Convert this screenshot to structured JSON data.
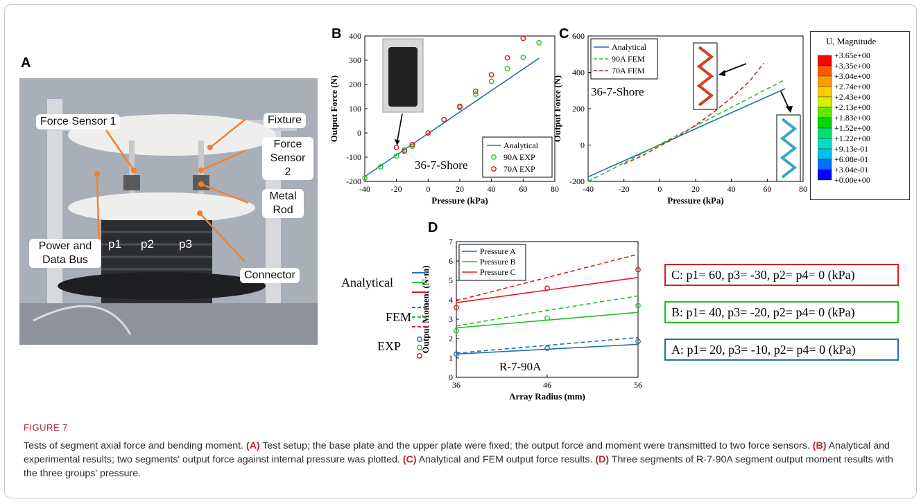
{
  "figure_label": "FIGURE 7",
  "caption": {
    "intro": "Tests of segment axial force and bending moment. ",
    "a_tag": "(A)",
    "a_text": " Test setup; the base plate and the upper plate were fixed; the output force and moment were transmitted to two force sensors. ",
    "b_tag": "(B)",
    "b_text": " Analytical and experimental results; two segments' output force against internal pressure was plotted. ",
    "c_tag": "(C)",
    "c_text": " Analytical and FEM output force results. ",
    "d_tag": "(D)",
    "d_text": " Three segments of R-7-90A segment output moment results with the three groups' pressure."
  },
  "panels": {
    "a": "A",
    "b": "B",
    "c": "C",
    "d": "D"
  },
  "panel_a": {
    "callouts": {
      "force_sensor_1": "Force Sensor 1",
      "fixture": "Fixture",
      "force_sensor_2": "Force Sensor 2",
      "metal_rod": "Metal Rod",
      "power_data_bus": "Power and Data Bus",
      "connector": "Connector"
    },
    "ports": [
      "p1",
      "p2",
      "p3"
    ]
  },
  "panel_d_legend": {
    "analytical": "Analytical",
    "fem": "FEM",
    "exp": "EXP",
    "colors": {
      "a": "#1f6fb5",
      "b": "#1ec41e",
      "c": "#e01b1b"
    }
  },
  "cases": [
    {
      "id": "c",
      "text": "C: p1= 60, p3= -30, p2= p4= 0 (kPa)",
      "color": "#e01b1b"
    },
    {
      "id": "b",
      "text": "B: p1= 40, p3= -20, p2= p4= 0 (kPa)",
      "color": "#1ec41e"
    },
    {
      "id": "a",
      "text": "A: p1= 20, p3= -10, p2= p4= 0 (kPa)",
      "color": "#1f6fb5"
    }
  ],
  "colorbar": {
    "title": "U, Magnitude",
    "labels": [
      "+3.65e+00",
      "+3.35e+00",
      "+3.04e+00",
      "+2.74e+00",
      "+2.43e+00",
      "+2.13e+00",
      "+1.83e+00",
      "+1.52e+00",
      "+1.22e+00",
      "+9.13e-01",
      "+6.08e-01",
      "+3.04e-01",
      "+0.00e+00"
    ],
    "colors": [
      "#ff0000",
      "#ff5a00",
      "#ff9b00",
      "#ffcc00",
      "#d8f000",
      "#60e800",
      "#00d800",
      "#00e070",
      "#00e0c0",
      "#00c0f0",
      "#0070ff",
      "#0000ff"
    ]
  },
  "chart_data": [
    {
      "id": "B",
      "type": "scatter",
      "xlabel": "Pressure (kPa)",
      "ylabel": "Output Force (N)",
      "xlim": [
        -40,
        80
      ],
      "ylim": [
        -200,
        400
      ],
      "xticks": [
        -40,
        -20,
        0,
        20,
        40,
        60,
        80
      ],
      "yticks": [
        -200,
        -100,
        0,
        100,
        200,
        300,
        400
      ],
      "annotation": "36-7-Shore",
      "legend_position": "bottom-right",
      "series": [
        {
          "name": "Analytical",
          "kind": "line",
          "color": "#1f6fb5",
          "x": [
            -40,
            70
          ],
          "y": [
            -180,
            308
          ]
        },
        {
          "name": "90A EXP",
          "kind": "markers",
          "color": "#1ec41e",
          "x": [
            -40,
            -30,
            -20,
            -15,
            -10,
            0,
            10,
            20,
            30,
            40,
            50,
            60,
            70
          ],
          "y": [
            -187,
            -140,
            -95,
            -70,
            -55,
            0,
            55,
            105,
            160,
            213,
            265,
            312,
            372
          ]
        },
        {
          "name": "70A EXP",
          "kind": "markers",
          "color": "#e01b1b",
          "x": [
            -20,
            -15,
            -10,
            0,
            10,
            20,
            30,
            40,
            50,
            60
          ],
          "y": [
            -60,
            -75,
            -48,
            0,
            55,
            110,
            172,
            240,
            310,
            390
          ]
        }
      ]
    },
    {
      "id": "C",
      "type": "line",
      "xlabel": "Pressure (kPa)",
      "ylabel": "Output Force (N)",
      "xlim": [
        -40,
        80
      ],
      "ylim": [
        -200,
        600
      ],
      "xticks": [
        -40,
        -20,
        0,
        20,
        40,
        60,
        80
      ],
      "yticks": [
        -200,
        0,
        200,
        400,
        600
      ],
      "annotation": "36-7-Shore",
      "legend_position": "top-left",
      "series": [
        {
          "name": "Analytical",
          "style": "solid",
          "color": "#1f6fb5",
          "x": [
            -40,
            70
          ],
          "y": [
            -175,
            310
          ]
        },
        {
          "name": "90A FEM",
          "style": "dashed",
          "color": "#1ec41e",
          "x": [
            -40,
            70
          ],
          "y": [
            -200,
            360
          ]
        },
        {
          "name": "70A FEM",
          "style": "dashed",
          "color": "#e01b1b",
          "x": [
            -20,
            -10,
            0,
            10,
            20,
            30,
            40,
            50,
            58
          ],
          "y": [
            -105,
            -60,
            -5,
            45,
            110,
            180,
            260,
            350,
            450
          ]
        }
      ]
    },
    {
      "id": "D",
      "type": "line",
      "xlabel": "Array Radius (mm)",
      "ylabel": "Output Moment (N·m)",
      "xlim": [
        36,
        56
      ],
      "ylim": [
        0,
        7
      ],
      "categories": [
        36,
        46,
        56
      ],
      "yticks": [
        0,
        1,
        2,
        3,
        4,
        5,
        6,
        7
      ],
      "annotation": "R-7-90A",
      "legend_position": "top-left",
      "series": [
        {
          "name": "Pressure A",
          "color": "#1f6fb5",
          "analytical": [
            1.2,
            1.45,
            1.7
          ],
          "fem": [
            1.25,
            1.65,
            2.05
          ],
          "exp": [
            1.2,
            1.5,
            1.85
          ]
        },
        {
          "name": "Pressure B",
          "color": "#1ec41e",
          "analytical": [
            2.55,
            2.95,
            3.35
          ],
          "fem": [
            2.65,
            3.45,
            4.2
          ],
          "exp": [
            2.4,
            3.05,
            3.7
          ]
        },
        {
          "name": "Pressure C",
          "color": "#e01b1b",
          "analytical": [
            3.85,
            4.5,
            5.15
          ],
          "fem": [
            3.95,
            5.15,
            6.35
          ],
          "exp": [
            3.6,
            4.6,
            5.55
          ]
        }
      ]
    }
  ]
}
